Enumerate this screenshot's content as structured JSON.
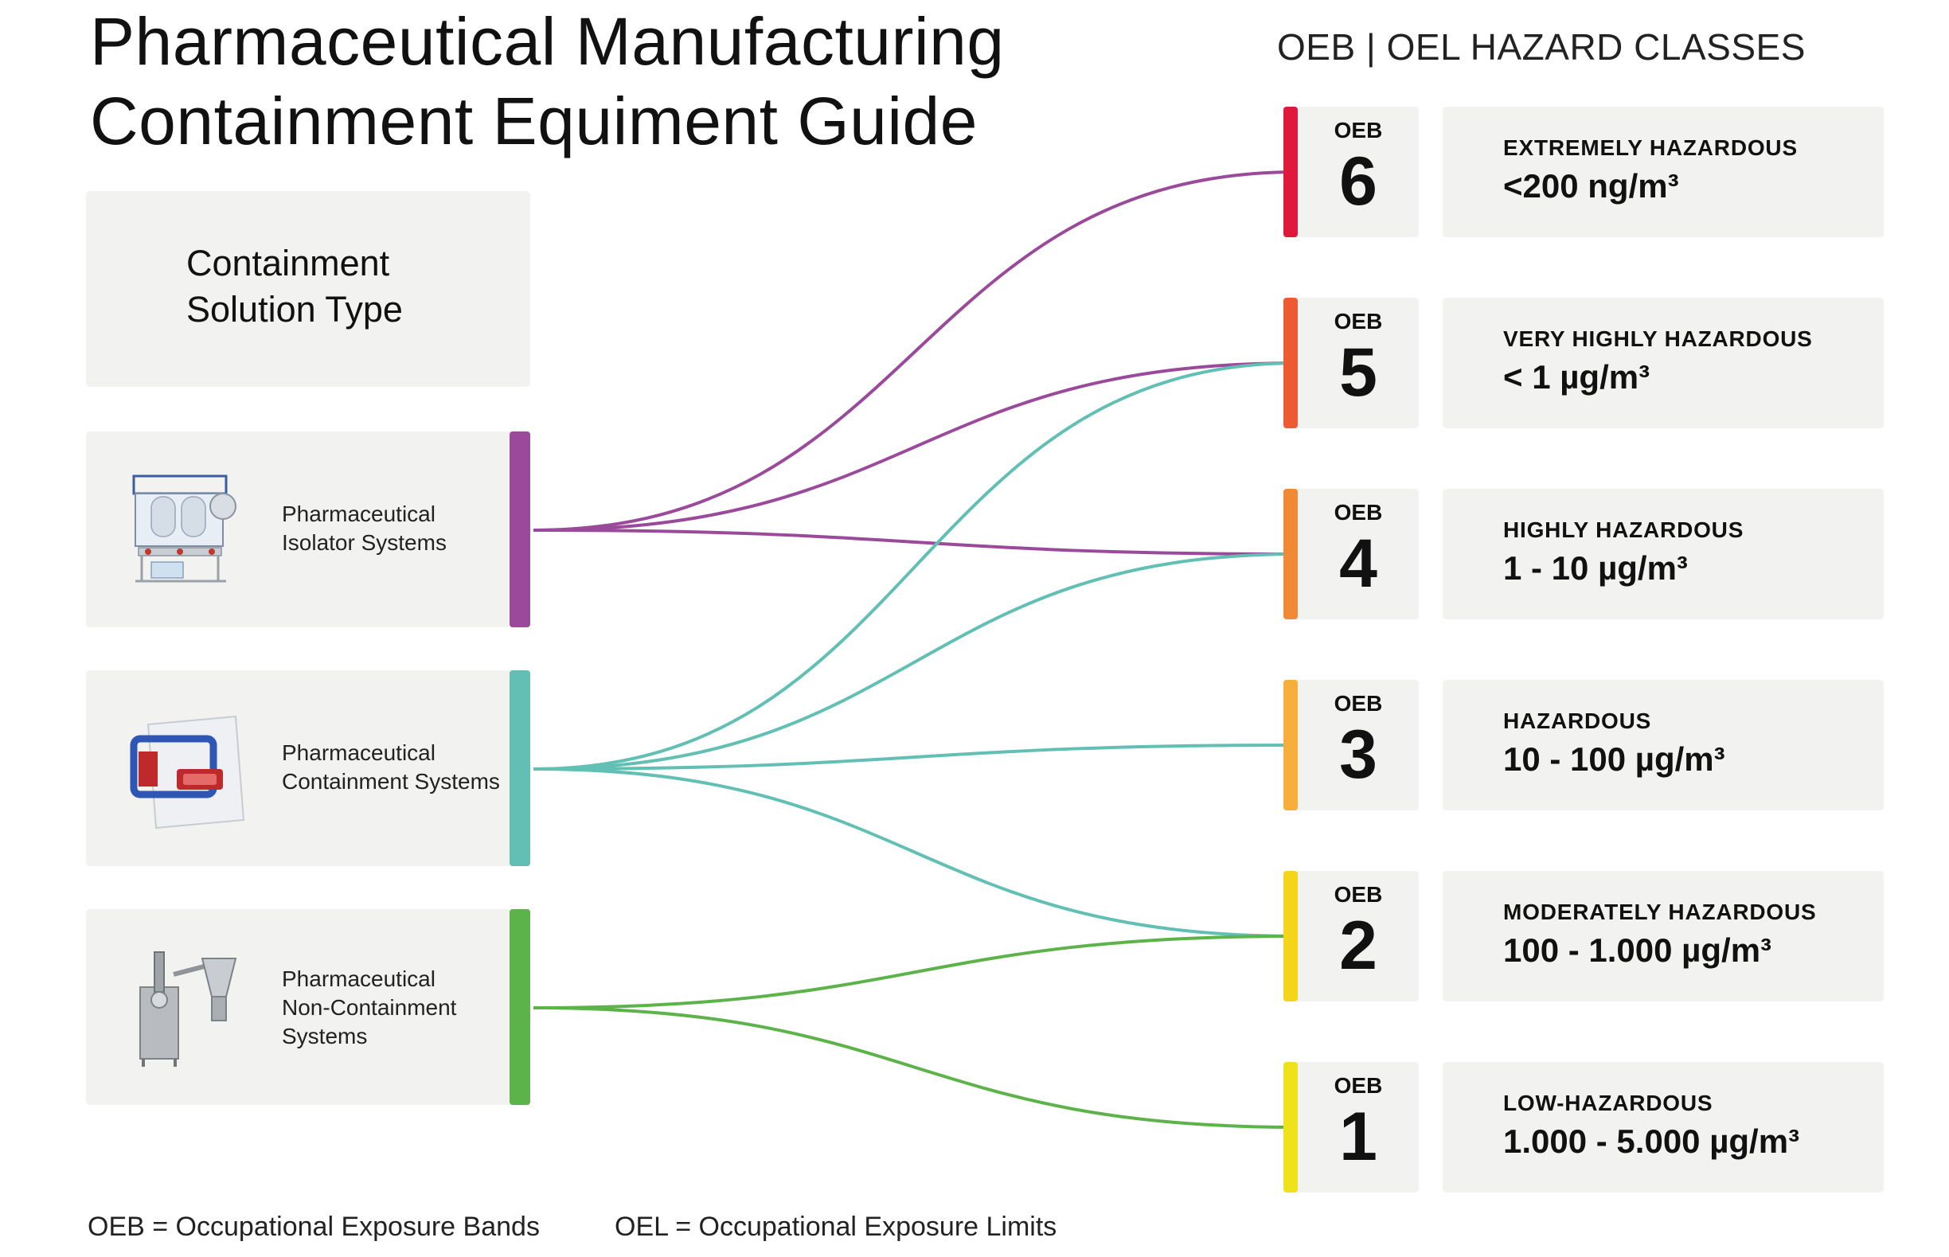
{
  "title": {
    "line1": "Pharmaceutical Manufacturing",
    "line2": "Containment Equiment Guide"
  },
  "classes_heading": "OEB | OEL HAZARD CLASSES",
  "type_header": {
    "line1": "Containment",
    "line2": "Solution Type"
  },
  "systems": [
    {
      "line1": "Pharmaceutical",
      "line2": "Isolator Systems",
      "line3": "",
      "color": "#9b4a9b",
      "icon": "isolator-icon",
      "links_to": [
        6,
        5,
        4
      ]
    },
    {
      "line1": "Pharmaceutical",
      "line2": "Containment Systems",
      "line3": "",
      "color": "#62bfb4",
      "icon": "containment-bag-icon",
      "links_to": [
        5,
        4,
        3,
        2
      ]
    },
    {
      "line1": "Pharmaceutical",
      "line2": "Non-Containment",
      "line3": "Systems",
      "color": "#5cb349",
      "icon": "non-containment-machine-icon",
      "links_to": [
        2,
        1
      ]
    }
  ],
  "classes": [
    {
      "key": "OEB",
      "value": "6",
      "name": "EXTREMELY HAZARDOUS",
      "limit": "<200 ng/m³",
      "color": "#e0193c"
    },
    {
      "key": "OEB",
      "value": "5",
      "name": "VERY HIGHLY HAZARDOUS",
      "limit": "< 1 µg/m³",
      "color": "#ee5a32"
    },
    {
      "key": "OEB",
      "value": "4",
      "name": "HIGHLY HAZARDOUS",
      "limit": "1 - 10 µg/m³",
      "color": "#f08a36"
    },
    {
      "key": "OEB",
      "value": "3",
      "name": "HAZARDOUS",
      "limit": "10 - 100 µg/m³",
      "color": "#f8ae3a"
    },
    {
      "key": "OEB",
      "value": "2",
      "name": "MODERATELY HAZARDOUS",
      "limit": "100 - 1.000 µg/m³",
      "color": "#f5d519"
    },
    {
      "key": "OEB",
      "value": "1",
      "name": "LOW-HAZARDOUS",
      "limit": "1.000 - 5.000 µg/m³",
      "color": "#f0e21a"
    }
  ],
  "footer": {
    "oeb_def": "OEB = Occupational Exposure Bands",
    "oel_def": "OEL = Occupational Exposure Limits"
  }
}
